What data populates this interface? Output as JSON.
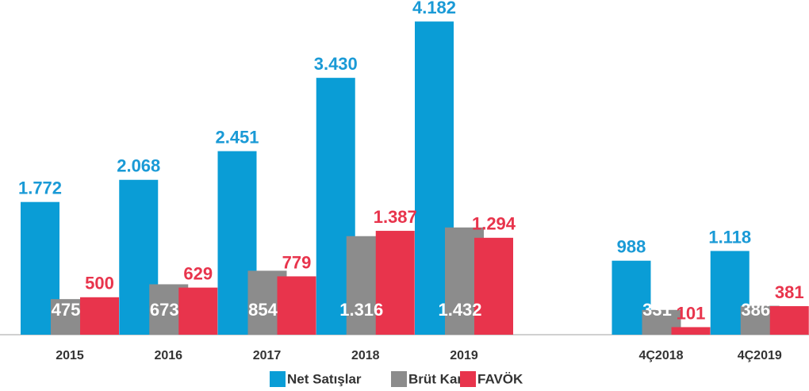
{
  "chart_data": {
    "type": "bar",
    "categories": [
      "2015",
      "2016",
      "2017",
      "2018",
      "2019",
      null,
      "4Ç2018",
      "4Ç2019"
    ],
    "series": [
      {
        "name": "Net Satışlar",
        "color": "#0a9dd6",
        "values": [
          1772,
          2068,
          2451,
          3430,
          4182,
          null,
          988,
          1118
        ],
        "value_labels": [
          "1.772",
          "2.068",
          "2.451",
          "3.430",
          "4.182",
          null,
          "988",
          "1.118"
        ]
      },
      {
        "name": "Brüt Kar",
        "color": "#8c8c8c",
        "values": [
          475,
          673,
          854,
          1316,
          1432,
          null,
          331,
          386
        ],
        "value_labels": [
          "475",
          "673",
          "854",
          "1.316",
          "1.432",
          null,
          "331",
          "386"
        ]
      },
      {
        "name": "FAVÖK",
        "color": "#e8344c",
        "values": [
          500,
          629,
          779,
          1387,
          1294,
          null,
          101,
          381
        ],
        "value_labels": [
          "500",
          "629",
          "779",
          "1.387",
          "1.294",
          null,
          "101",
          "381"
        ]
      }
    ],
    "ylim": [
      0,
      4300
    ]
  }
}
